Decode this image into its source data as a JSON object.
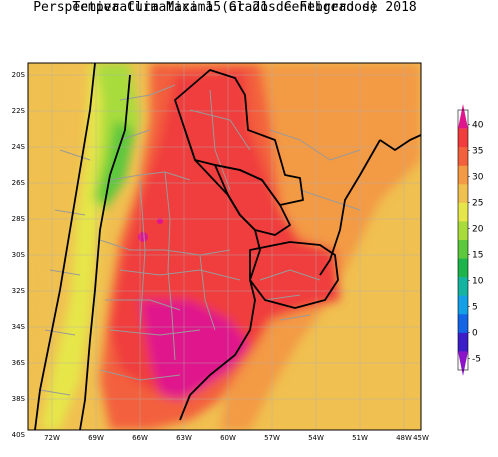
{
  "title": {
    "line1": "Perspectiva Climatica 15 al 21 de Febrero de 2018",
    "line2": "Temperatura Maxima (Grados Centigrados)"
  },
  "map": {
    "lat_ticks": [
      "20S",
      "22S",
      "24S",
      "26S",
      "28S",
      "30S",
      "32S",
      "34S",
      "36S",
      "38S",
      "40S"
    ],
    "lon_ticks": [
      "72W",
      "69W",
      "66W",
      "63W",
      "60W",
      "57W",
      "54W",
      "51W",
      "48W",
      "45W"
    ]
  },
  "colorbar": {
    "labels": [
      "40",
      "35",
      "30",
      "25",
      "20",
      "15",
      "10",
      "5",
      "0",
      "-5"
    ],
    "colors": [
      "#e0148c",
      "#f03c3c",
      "#f3603c",
      "#f39a45",
      "#f0c050",
      "#e6e64a",
      "#a8dc3c",
      "#5cc83c",
      "#1eb44c",
      "#14b4a0",
      "#14a0e6",
      "#1464e6",
      "#3c1ec8",
      "#8c14c8"
    ]
  }
}
